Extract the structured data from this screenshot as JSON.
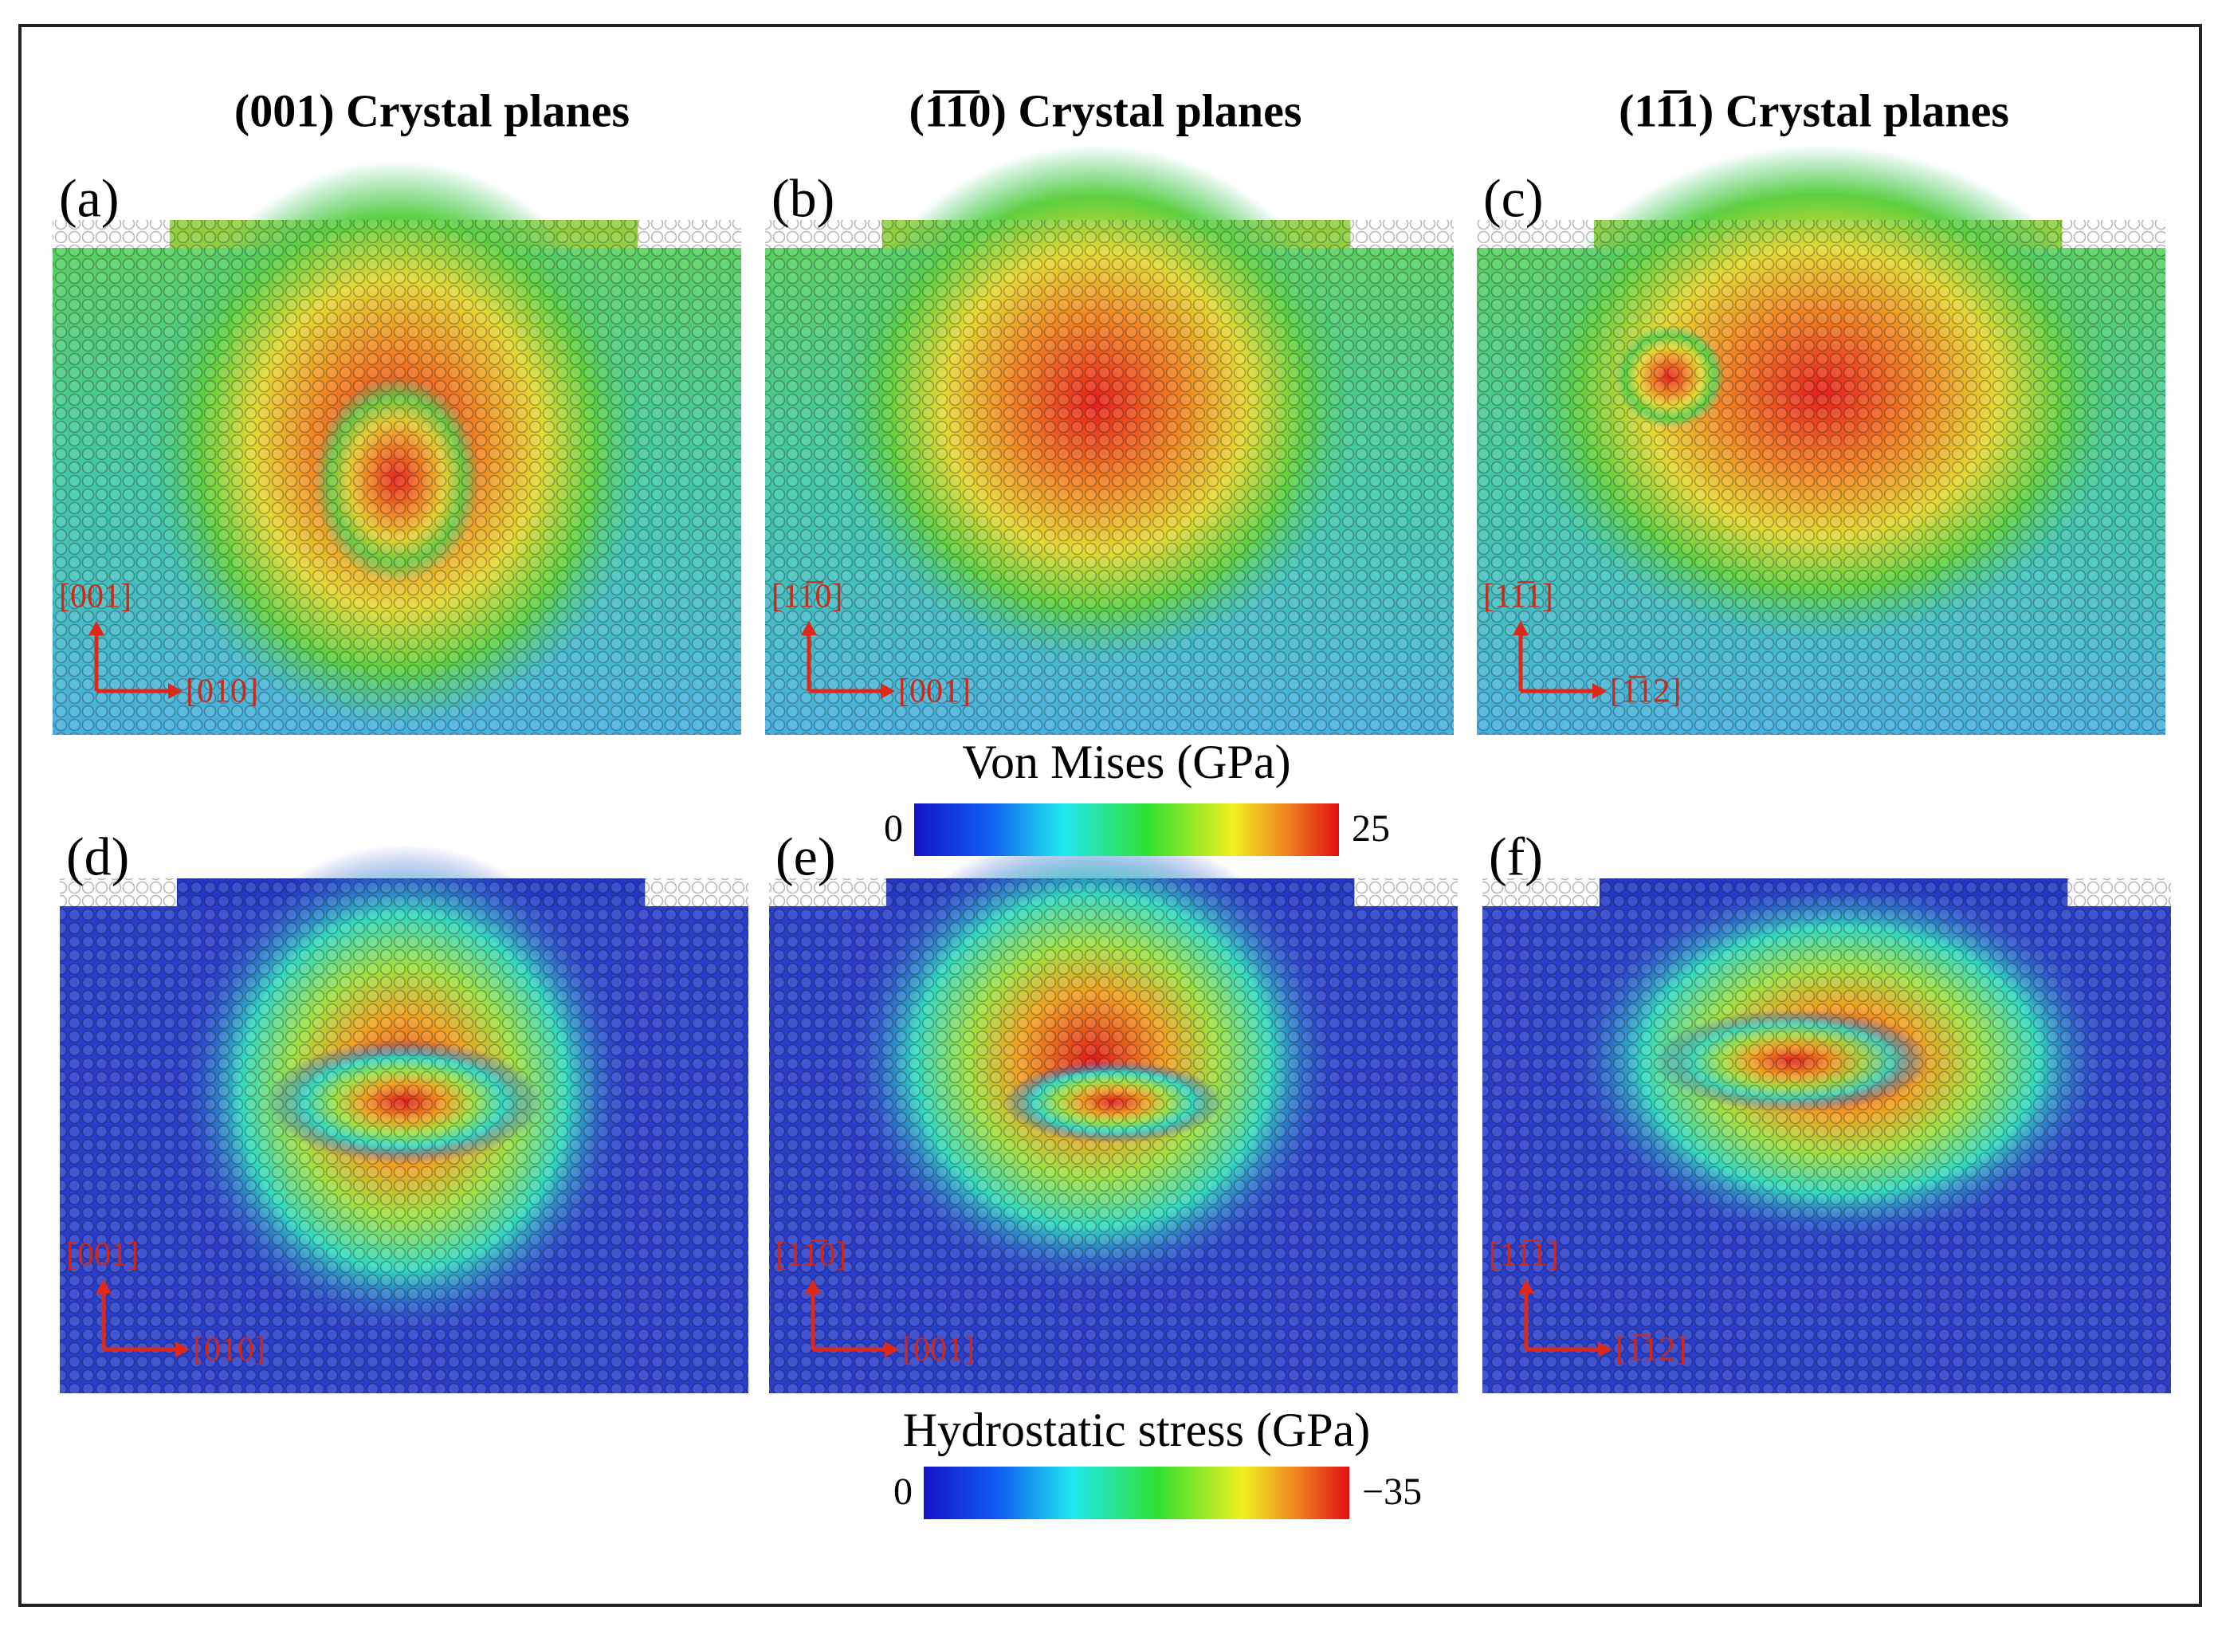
{
  "columns": [
    "(001) Crystal planes",
    "(1̅1̅0) Crystal planes",
    "(11̅1) Crystal planes"
  ],
  "panels": [
    {
      "label": "(a)",
      "axis_up": "[001]",
      "axis_right": "[010]"
    },
    {
      "label": "(b)",
      "axis_up": "[11̅0]",
      "axis_right": "[001]"
    },
    {
      "label": "(c)",
      "axis_up": "[11̅1]",
      "axis_right": "[1̅12]"
    },
    {
      "label": "(d)",
      "axis_up": "[001]",
      "axis_right": "[010]"
    },
    {
      "label": "(e)",
      "axis_up": "[11̅0]",
      "axis_right": "[001]"
    },
    {
      "label": "(f)",
      "axis_up": "[11̅1]",
      "axis_right": "[1̅12]"
    }
  ],
  "colorbars": [
    {
      "title": "Von Mises (GPa)",
      "min": "0",
      "max": "25"
    },
    {
      "title": "Hydrostatic stress (GPa)",
      "min": "0",
      "max": "−35"
    }
  ]
}
